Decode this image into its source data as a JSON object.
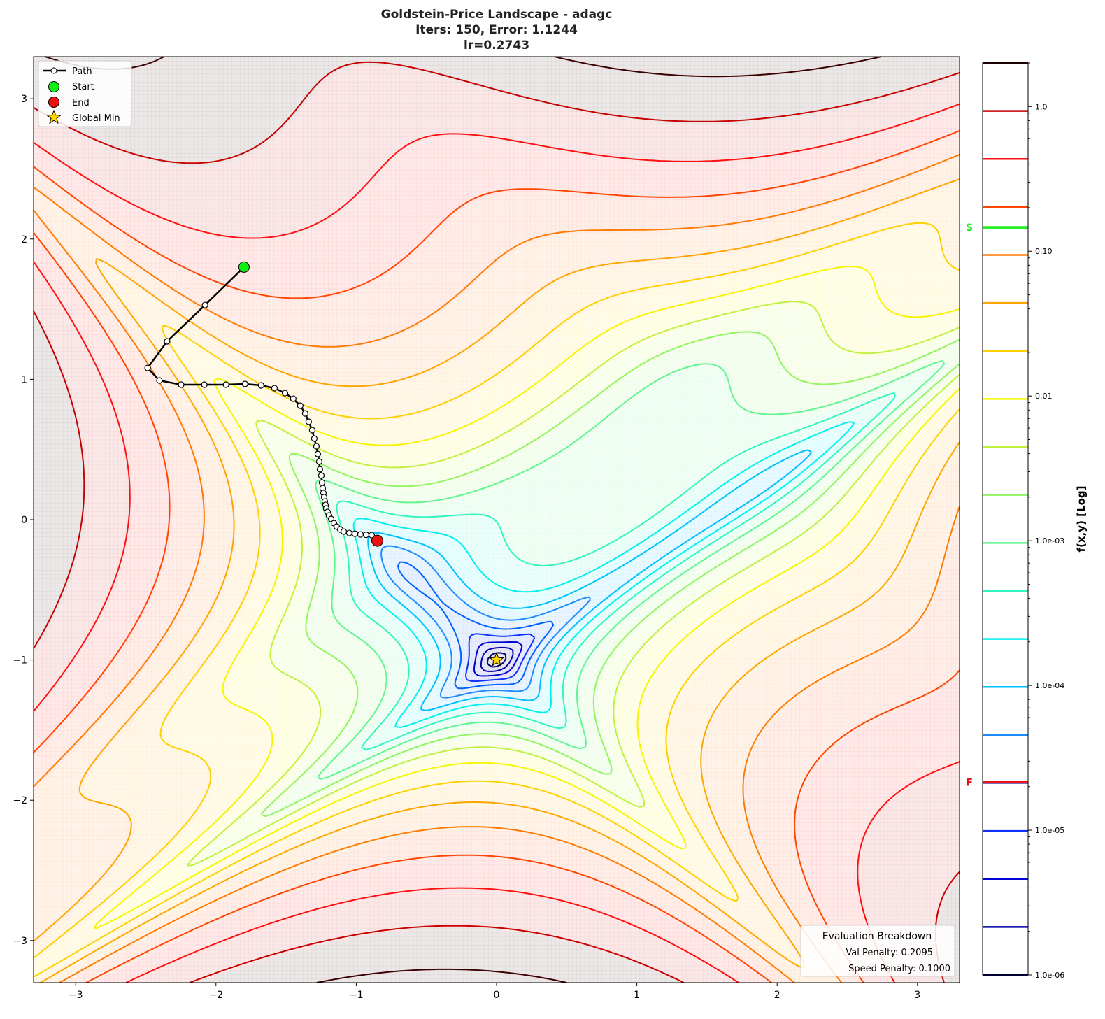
{
  "chart_data": {
    "type": "contour",
    "title": [
      "Goldstein-Price Landscape - adagc",
      "Iters: 150, Error: 1.1244",
      "lr=0.2743"
    ],
    "function": "Goldstein-Price",
    "xlim": [
      -3.3,
      3.3
    ],
    "ylim": [
      -3.3,
      3.3
    ],
    "xticks": [
      -3,
      -2,
      -1,
      0,
      1,
      2,
      3
    ],
    "yticks": [
      -3,
      -2,
      -1,
      0,
      1,
      2,
      3
    ],
    "xtick_labels": [
      "−3",
      "−2",
      "−1",
      "0",
      "1",
      "2",
      "3"
    ],
    "ytick_labels": [
      "−3",
      "−2",
      "−1",
      "0",
      "1",
      "2",
      "3"
    ],
    "grid": false,
    "level_colors": [
      "#00006a",
      "#0000a8",
      "#0000d8",
      "#1030ff",
      "#0060ff",
      "#1e8cff",
      "#00bfff",
      "#00f0f0",
      "#30f5c0",
      "#60f590",
      "#90f560",
      "#c0f040",
      "#f5f500",
      "#ffd000",
      "#ffa500",
      "#ff7a00",
      "#ff4500",
      "#ff1010",
      "#c80000",
      "#3a0000"
    ],
    "colorbar": {
      "label": "f(x,y) [Log]",
      "scale": "log",
      "range": [
        1e-06,
        2.0
      ],
      "ticks": [
        1.0,
        0.1,
        0.01,
        0.001,
        0.0001,
        1e-05,
        1e-06
      ],
      "tick_labels": [
        "1.0",
        "0.10",
        "0.01",
        "1.0e-03",
        "1.0e-04",
        "1.0e-05",
        "1.0e-06"
      ],
      "markers": [
        {
          "label": "S",
          "value": 0.146,
          "color": "#22ee22"
        },
        {
          "label": "F",
          "value": 2.15e-05,
          "color": "#ee1111"
        }
      ]
    },
    "path": {
      "points": [
        [
          -1.8,
          1.8
        ],
        [
          -2.078,
          1.53
        ],
        [
          -2.348,
          1.271
        ],
        [
          -2.487,
          1.081
        ],
        [
          -2.403,
          0.992
        ],
        [
          -2.248,
          0.962
        ],
        [
          -2.083,
          0.962
        ],
        [
          -1.928,
          0.962
        ],
        [
          -1.793,
          0.967
        ],
        [
          -1.678,
          0.957
        ],
        [
          -1.583,
          0.937
        ],
        [
          -1.508,
          0.902
        ],
        [
          -1.449,
          0.862
        ],
        [
          -1.399,
          0.812
        ],
        [
          -1.364,
          0.757
        ],
        [
          -1.339,
          0.698
        ],
        [
          -1.314,
          0.638
        ],
        [
          -1.299,
          0.578
        ],
        [
          -1.284,
          0.523
        ],
        [
          -1.274,
          0.468
        ],
        [
          -1.264,
          0.414
        ],
        [
          -1.259,
          0.359
        ],
        [
          -1.249,
          0.314
        ],
        [
          -1.244,
          0.264
        ],
        [
          -1.239,
          0.224
        ],
        [
          -1.234,
          0.19
        ],
        [
          -1.229,
          0.16
        ],
        [
          -1.224,
          0.13
        ],
        [
          -1.219,
          0.105
        ],
        [
          -1.214,
          0.08
        ],
        [
          -1.204,
          0.055
        ],
        [
          -1.194,
          0.03
        ],
        [
          -1.179,
          0.005
        ],
        [
          -1.159,
          -0.025
        ],
        [
          -1.139,
          -0.05
        ],
        [
          -1.114,
          -0.07
        ],
        [
          -1.089,
          -0.085
        ],
        [
          -1.05,
          -0.095
        ],
        [
          -1.01,
          -0.1
        ],
        [
          -0.97,
          -0.105
        ],
        [
          -0.93,
          -0.108
        ],
        [
          -0.89,
          -0.11
        ],
        [
          -0.85,
          -0.15
        ]
      ],
      "start": [
        -1.8,
        1.8
      ],
      "end": [
        -0.85,
        -0.15
      ],
      "global_min": [
        0,
        -1
      ]
    },
    "legend": {
      "position": "upper-left",
      "entries": [
        "Path",
        "Start",
        "End",
        "Global Min"
      ]
    }
  },
  "evaluation": {
    "title": "Evaluation Breakdown",
    "val_penalty": "Val Penalty: 0.2095",
    "speed_penalty": "Speed Penalty: 0.1000"
  }
}
